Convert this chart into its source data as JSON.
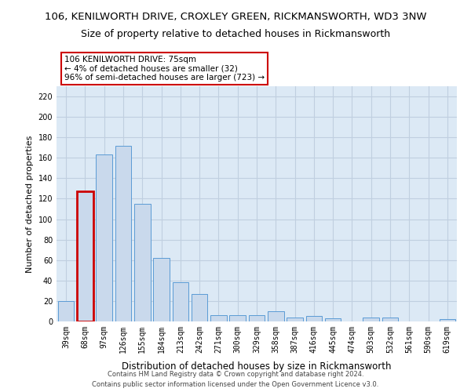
{
  "title": "106, KENILWORTH DRIVE, CROXLEY GREEN, RICKMANSWORTH, WD3 3NW",
  "subtitle": "Size of property relative to detached houses in Rickmansworth",
  "xlabel": "Distribution of detached houses by size in Rickmansworth",
  "ylabel": "Number of detached properties",
  "categories": [
    "39sqm",
    "68sqm",
    "97sqm",
    "126sqm",
    "155sqm",
    "184sqm",
    "213sqm",
    "242sqm",
    "271sqm",
    "300sqm",
    "329sqm",
    "358sqm",
    "387sqm",
    "416sqm",
    "445sqm",
    "474sqm",
    "503sqm",
    "532sqm",
    "561sqm",
    "590sqm",
    "619sqm"
  ],
  "values": [
    20,
    127,
    163,
    172,
    115,
    62,
    38,
    27,
    6,
    6,
    6,
    10,
    4,
    5,
    3,
    0,
    4,
    4,
    0,
    0,
    2
  ],
  "bar_color": "#c9d9ec",
  "bar_edge_color": "#5b9bd5",
  "highlight_bar_index": 1,
  "highlight_bar_edge_color": "#cc0000",
  "annotation_line1": "106 KENILWORTH DRIVE: 75sqm",
  "annotation_line2": "← 4% of detached houses are smaller (32)",
  "annotation_line3": "96% of semi-detached houses are larger (723) →",
  "annotation_box_color": "#ffffff",
  "annotation_box_edge_color": "#cc0000",
  "ylim": [
    0,
    230
  ],
  "yticks": [
    0,
    20,
    40,
    60,
    80,
    100,
    120,
    140,
    160,
    180,
    200,
    220
  ],
  "figure_background_color": "#ffffff",
  "plot_background_color": "#dce9f5",
  "grid_color": "#c0cfe0",
  "footer_line1": "Contains HM Land Registry data © Crown copyright and database right 2024.",
  "footer_line2": "Contains public sector information licensed under the Open Government Licence v3.0.",
  "title_fontsize": 9.5,
  "subtitle_fontsize": 9.0,
  "xlabel_fontsize": 8.5,
  "ylabel_fontsize": 8.0,
  "tick_fontsize": 7.0,
  "annotation_fontsize": 7.5,
  "footer_fontsize": 6.0
}
